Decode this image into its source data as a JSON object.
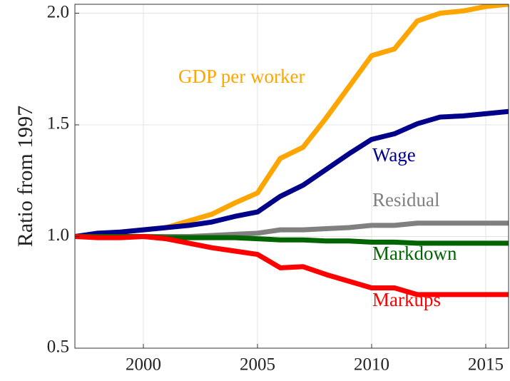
{
  "chart_data": {
    "type": "line",
    "ylabel": "Ratio from 1997",
    "x": [
      1997,
      1998,
      1999,
      2000,
      2001,
      2002,
      2003,
      2004,
      2005,
      2006,
      2007,
      2008,
      2009,
      2010,
      2011,
      2012,
      2013,
      2014,
      2015,
      2016
    ],
    "series": [
      {
        "name": "GDP per worker",
        "color": "#ffa500",
        "values": [
          1.0,
          1.01,
          1.02,
          1.03,
          1.04,
          1.07,
          1.1,
          1.15,
          1.195,
          1.35,
          1.4,
          1.53,
          1.67,
          1.81,
          1.84,
          1.965,
          2.0,
          2.01,
          2.03,
          2.04
        ]
      },
      {
        "name": "Wage",
        "color": "#00008b",
        "values": [
          1.0,
          1.015,
          1.02,
          1.03,
          1.04,
          1.05,
          1.065,
          1.09,
          1.11,
          1.18,
          1.23,
          1.3,
          1.37,
          1.435,
          1.46,
          1.505,
          1.535,
          1.54,
          1.55,
          1.56
        ]
      },
      {
        "name": "Residual",
        "color": "#808080",
        "values": [
          1.0,
          1.0,
          1.0,
          1.0,
          1.0,
          1.0,
          1.005,
          1.01,
          1.015,
          1.03,
          1.03,
          1.035,
          1.04,
          1.05,
          1.05,
          1.06,
          1.06,
          1.06,
          1.06,
          1.06
        ]
      },
      {
        "name": "Markdown",
        "color": "#006400",
        "values": [
          1.0,
          1.0,
          1.0,
          1.0,
          0.995,
          0.995,
          0.995,
          0.995,
          0.99,
          0.985,
          0.985,
          0.98,
          0.98,
          0.975,
          0.975,
          0.97,
          0.97,
          0.97,
          0.97,
          0.97
        ]
      },
      {
        "name": "Markups",
        "color": "#ff0000",
        "values": [
          1.0,
          0.995,
          0.995,
          1.0,
          0.99,
          0.97,
          0.95,
          0.935,
          0.92,
          0.86,
          0.865,
          0.83,
          0.8,
          0.77,
          0.77,
          0.74,
          0.74,
          0.74,
          0.74,
          0.74
        ]
      }
    ],
    "xlim": [
      1997,
      2016
    ],
    "ylim": [
      0.5,
      2.04
    ],
    "xticks": [
      2000,
      2005,
      2010,
      2015
    ],
    "yticks": [
      {
        "value": 0.5,
        "label": "0.5"
      },
      {
        "value": 1,
        "label": "1.0"
      },
      {
        "value": 1.5,
        "label": "1.5"
      },
      {
        "value": 2,
        "label": "2.0"
      }
    ],
    "grid": true
  }
}
